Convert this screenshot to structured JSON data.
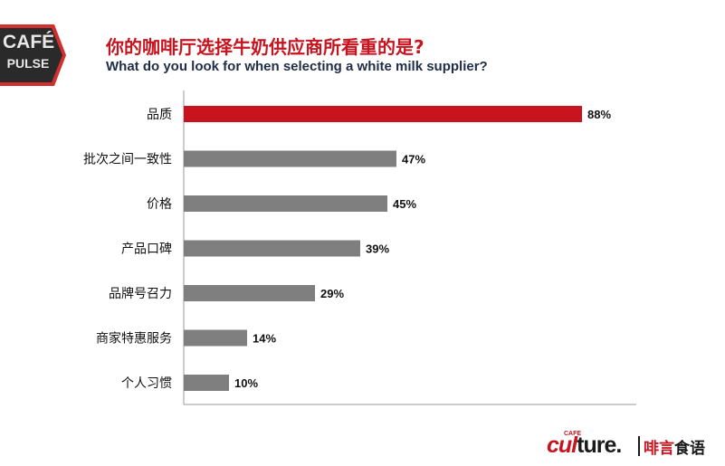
{
  "logo": {
    "line1": "CAFÉ",
    "line2": "PULSE"
  },
  "title_zh": "你的咖啡厅选择牛奶供应商所看重的是?",
  "title_en": "What do you look for when selecting a white milk supplier?",
  "chart_data": {
    "type": "bar",
    "orientation": "horizontal",
    "categories": [
      "品质",
      "批次之间一致性",
      "价格",
      "产品口碑",
      "品牌号召力",
      "商家特惠服务",
      "个人习惯"
    ],
    "values": [
      88,
      47,
      45,
      39,
      29,
      14,
      10
    ],
    "value_labels": [
      "88%",
      "47%",
      "45%",
      "39%",
      "29%",
      "14%",
      "10%"
    ],
    "unit": "%",
    "xlim": [
      0,
      100
    ],
    "grid": false,
    "colors": {
      "highlight": "#c8141e",
      "default": "#7f7f7f",
      "axis": "#9a9a9a"
    }
  },
  "brand": {
    "cafe": "CAFE",
    "culture_red": "cul",
    "culture_dark": "ture.",
    "cn_red": "啡言",
    "cn_dark": "食语"
  },
  "colors": {
    "accent": "#c8141e",
    "title_en": "#1f2d46",
    "logo_bg": "#2a2a2a"
  }
}
